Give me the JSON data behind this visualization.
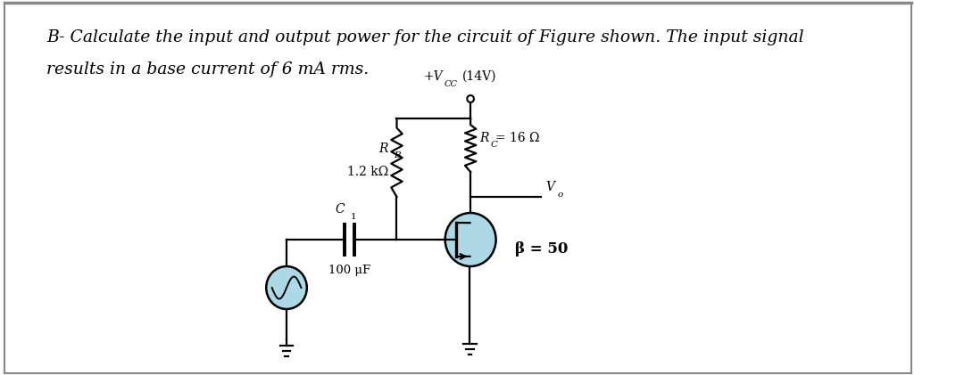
{
  "title_line1": "B- Calculate the input and output power for the circuit of Figure shown. The input signal",
  "title_line2": "results in a base current of 6 mA rms.",
  "vcc_text": "+V",
  "vcc_sub": "CC",
  "vcc_val": "(14V)",
  "rb_letter": "R",
  "rb_sub": "B",
  "rb_val": "1.2 kΩ",
  "rc_letter": "R",
  "rc_sub": "C",
  "rc_val": "= 16 Ω",
  "c1_letter": "C",
  "c1_sub": "1",
  "c1_val": "100 μF",
  "beta_label": "β = 50",
  "vo_letter": "V",
  "vo_sub": "o",
  "bg_color": "#ffffff",
  "text_color": "#000000",
  "circuit_color": "#000000",
  "transistor_fill": "#add8e6",
  "border_color": "#888888",
  "title_fontsize": 13.5,
  "label_fontsize": 10
}
